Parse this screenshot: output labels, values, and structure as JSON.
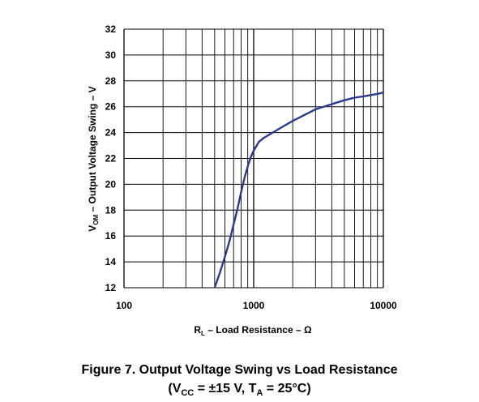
{
  "chart_data": {
    "type": "line",
    "x_scale": "log",
    "xlim": [
      100,
      10000
    ],
    "ylim": [
      12,
      32
    ],
    "x_ticks": [
      100,
      1000,
      10000
    ],
    "x_tick_labels": [
      "100",
      "1000",
      "10000"
    ],
    "y_ticks": [
      12,
      14,
      16,
      18,
      20,
      22,
      24,
      26,
      28,
      30,
      32
    ],
    "y_tick_labels": [
      "12",
      "14",
      "16",
      "18",
      "20",
      "22",
      "24",
      "26",
      "28",
      "30",
      "32"
    ],
    "grid": true,
    "xlabel": {
      "prefix": "R",
      "sub": "L",
      "rest": " – Load Resistance – Ω"
    },
    "ylabel": {
      "prefix": "V",
      "sub": "OM",
      "rest": " – Output Voltage Swing – V"
    },
    "series": [
      {
        "color": "#2b3a8c",
        "x": [
          500,
          550,
          600,
          650,
          700,
          750,
          800,
          850,
          900,
          950,
          1000,
          1100,
          1200,
          1400,
          1700,
          2000,
          2500,
          3000,
          4000,
          5000,
          6000,
          7000,
          8000,
          9000,
          10000
        ],
        "y": [
          12.0,
          13.2,
          14.4,
          15.6,
          16.9,
          18.1,
          19.4,
          20.5,
          21.4,
          22.1,
          22.6,
          23.3,
          23.6,
          24.0,
          24.5,
          24.9,
          25.4,
          25.8,
          26.2,
          26.5,
          26.7,
          26.8,
          26.9,
          27.0,
          27.1
        ]
      }
    ]
  },
  "caption": {
    "line1": "Figure 7. Output Voltage Swing vs Load Resistance",
    "line2_a": "(V",
    "line2_sub1": "CC",
    "line2_b": " = ±15 V, T",
    "line2_sub2": "A",
    "line2_c": " = 25°C)"
  }
}
